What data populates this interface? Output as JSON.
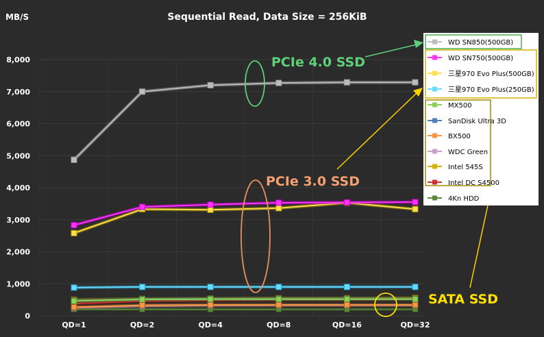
{
  "chart_data": {
    "type": "line",
    "title": "Sequential Read, Data Size = 256KiB",
    "ylabel": "MB/S",
    "xlabel": "",
    "categories": [
      "QD=1",
      "QD=2",
      "QD=4",
      "QD=8",
      "QD=16",
      "QD=32"
    ],
    "ylim": [
      0,
      8000
    ],
    "yticks": [
      "0",
      "1,000",
      "2,000",
      "3,000",
      "4,000",
      "5,000",
      "6,000",
      "7,000",
      "8,000"
    ],
    "ytick_values": [
      0,
      1000,
      2000,
      3000,
      4000,
      5000,
      6000,
      7000,
      8000
    ],
    "grid": true,
    "legend_position": "right",
    "series": [
      {
        "name": "WD SN850(500GB)",
        "color": "#bdbdbd",
        "glow": "#9a9a9a",
        "values": [
          4870,
          7000,
          7200,
          7270,
          7290,
          7290
        ]
      },
      {
        "name": "WD SN750(500GB)",
        "color": "#ff33ff",
        "glow": "#cc00cc",
        "values": [
          2830,
          3400,
          3470,
          3530,
          3540,
          3550
        ]
      },
      {
        "name": "三星970 Evo Plus(500GB)",
        "color": "#ffe04a",
        "glow": "#b8a000",
        "values": [
          2580,
          3330,
          3310,
          3360,
          3530,
          3330
        ]
      },
      {
        "name": "三星970 Evo Plus(250GB)",
        "color": "#66ddff",
        "glow": "#2aa0d0",
        "values": [
          880,
          900,
          900,
          900,
          900,
          900
        ]
      },
      {
        "name": "MX500",
        "color": "#8fd05a",
        "glow": "#5a8a2a",
        "values": [
          460,
          510,
          520,
          520,
          520,
          520
        ]
      },
      {
        "name": "SanDisk Ultra 3D",
        "color": "#4f81bd",
        "glow": "#2a4f80",
        "values": [
          470,
          520,
          530,
          530,
          530,
          530
        ]
      },
      {
        "name": "BX500",
        "color": "#f79646",
        "glow": "#a05a1a",
        "values": [
          270,
          330,
          340,
          340,
          340,
          340
        ]
      },
      {
        "name": "WDC Green",
        "color": "#c9a0c9",
        "glow": "#8a6a8a",
        "values": [
          250,
          300,
          320,
          330,
          330,
          330
        ]
      },
      {
        "name": "Intel 545S",
        "color": "#d4b000",
        "glow": "#8a7300",
        "values": [
          500,
          530,
          540,
          550,
          550,
          560
        ]
      },
      {
        "name": "Intel DC S4500",
        "color": "#d03030",
        "glow": "#801010",
        "values": [
          380,
          460,
          480,
          500,
          500,
          520
        ]
      },
      {
        "name": "4Kn HDD",
        "color": "#5a8a3a",
        "glow": "#304a20",
        "values": [
          200,
          200,
          200,
          200,
          200,
          200
        ]
      }
    ],
    "annotations": [
      {
        "text": "PCIe 4.0 SSD",
        "color": "#5fd07a"
      },
      {
        "text": "PCIe 3.0 SSD",
        "color": "#f4a070"
      },
      {
        "text": "SATA SSD",
        "color": "#ffe000"
      }
    ]
  }
}
